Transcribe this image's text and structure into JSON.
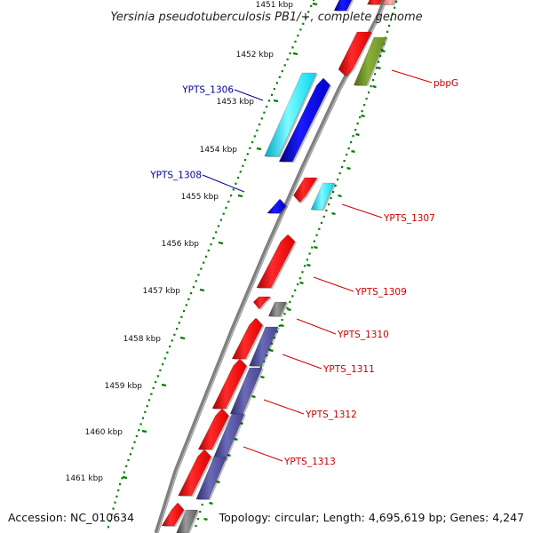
{
  "title": "Yersinia pseudotuberculosis PB1/+, complete genome",
  "footer": {
    "accession": "Accession: NC_010634",
    "summary": "Topology: circular; Length: 4,695,619 bp; Genes: 4,247"
  },
  "colors": {
    "backbone": "#808080",
    "ticks": "#008000",
    "label_red": "#cc0000",
    "label_blue": "#000099",
    "red": "#ff0000",
    "blue": "#0000ee",
    "cyan": "#00eeff",
    "olive": "#6b8e23",
    "purple": "#4b4b9a",
    "gray": "#6e6e6e"
  },
  "ruler": {
    "ticks": [
      "1451 kbp",
      "1452 kbp",
      "1453 kbp",
      "1454 kbp",
      "1455 kbp",
      "1456 kbp",
      "1457 kbp",
      "1458 kbp",
      "1459 kbp",
      "1460 kbp",
      "1461 kbp"
    ]
  },
  "labels": {
    "outer": [
      "YPTS_1306",
      "YPTS_1308"
    ],
    "inner": [
      "pbpG",
      "YPTS_1307",
      "YPTS_1309",
      "YPTS_1310",
      "YPTS_1311",
      "YPTS_1312",
      "YPTS_1313"
    ]
  }
}
